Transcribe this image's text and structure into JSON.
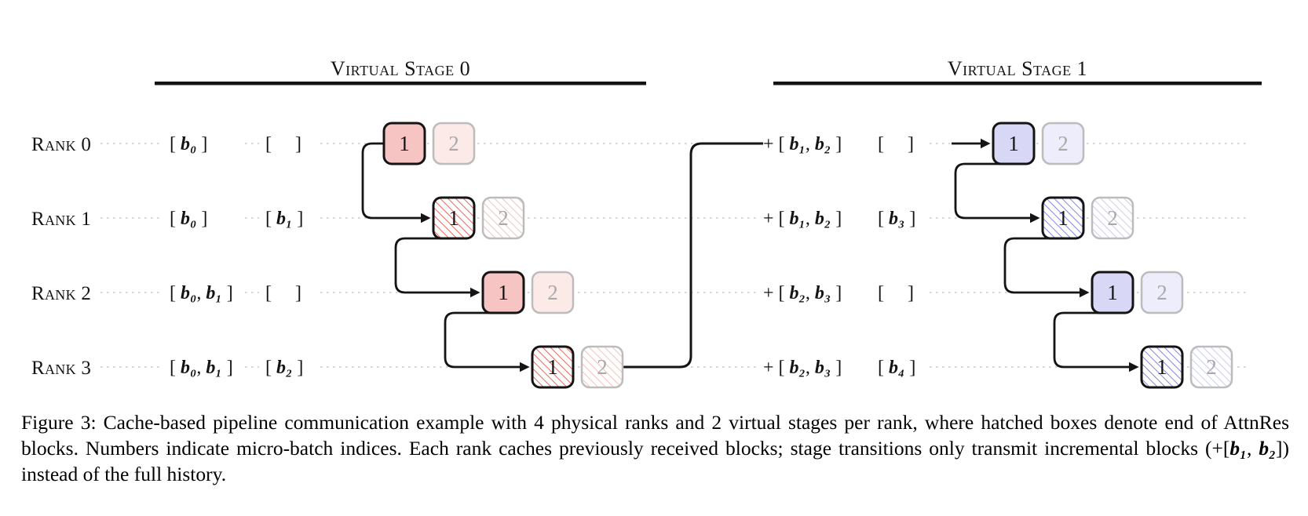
{
  "figure": {
    "stages": [
      {
        "header": "Virtual Stage 0"
      },
      {
        "header": "Virtual Stage 1"
      }
    ],
    "rows": [
      {
        "label": "Rank 0",
        "stage0": {
          "cache": "[ b₀ ]",
          "incoming": "[     ]",
          "box1": "1",
          "box2": "2"
        },
        "stage1": {
          "cache": "+ [ b₁, b₂ ]",
          "incoming": "[     ]",
          "box1": "1",
          "box2": "2"
        }
      },
      {
        "label": "Rank 1",
        "stage0": {
          "cache": "[ b₀ ]",
          "incoming": "[ b₁ ]",
          "box1": "1",
          "box2": "2"
        },
        "stage1": {
          "cache": "+ [ b₁, b₂ ]",
          "incoming": "[ b₃ ]",
          "box1": "1",
          "box2": "2"
        }
      },
      {
        "label": "Rank 2",
        "stage0": {
          "cache": "[ b₀, b₁ ]",
          "incoming": "[     ]",
          "box1": "1",
          "box2": "2"
        },
        "stage1": {
          "cache": "+ [ b₂, b₃ ]",
          "incoming": "[     ]",
          "box1": "1",
          "box2": "2"
        }
      },
      {
        "label": "Rank 3",
        "stage0": {
          "cache": "[ b₀, b₁ ]",
          "incoming": "[ b₂ ]",
          "box1": "1",
          "box2": "2"
        },
        "stage1": {
          "cache": "+ [ b₂, b₃ ]",
          "incoming": "[ b₄ ]",
          "box1": "1",
          "box2": "2"
        }
      }
    ],
    "caption": "Figure 3: Cache-based pipeline communication example with 4 physical ranks and 2 virtual stages per rank, where hatched boxes denote end of AttnRes blocks. Numbers indicate micro-batch indices. Each rank caches previously received blocks; stage transitions only transmit incremental blocks (+[b₁, b₂]) instead of the full history.",
    "colors": {
      "stage0_box_fill": "#f5c4c3",
      "stage0_box_fill_light": "#fbeae8",
      "stage0_hatch": "#e4685f",
      "stage0_hatch_light": "#f2c3bd",
      "stage1_box_fill": "#d8d8f6",
      "stage1_box_fill_light": "#ededfb",
      "stage1_hatch": "#8787e0",
      "stage1_hatch_light": "#cdcdf0",
      "strong_border": "#141414",
      "light_border": "#bcbcbc",
      "dotted_line": "#c9c9c9"
    }
  }
}
